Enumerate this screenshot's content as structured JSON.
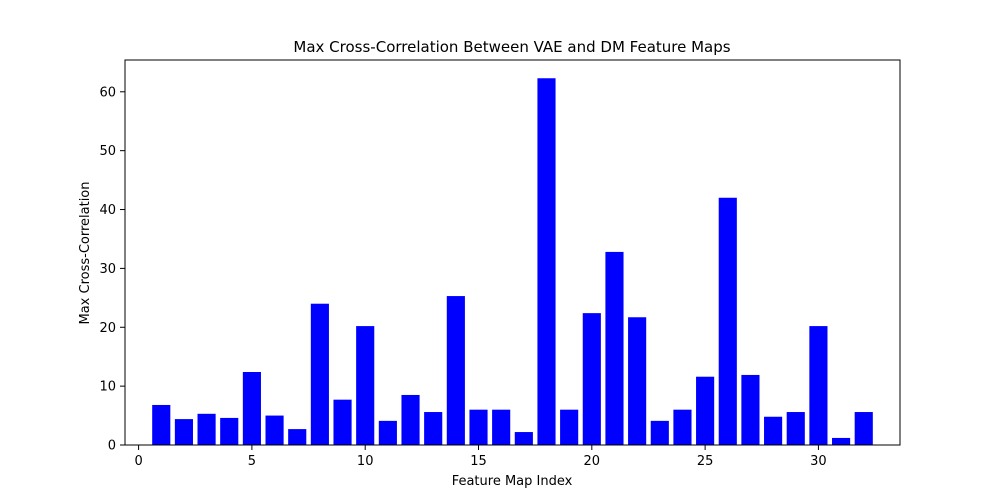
{
  "chart_data": {
    "type": "bar",
    "title": "Max Cross-Correlation Between VAE and DM Feature Maps",
    "xlabel": "Feature Map Index",
    "ylabel": "Max Cross-Correlation",
    "x": [
      1,
      2,
      3,
      4,
      5,
      6,
      7,
      8,
      9,
      10,
      11,
      12,
      13,
      14,
      15,
      16,
      17,
      18,
      19,
      20,
      21,
      22,
      23,
      24,
      25,
      26,
      27,
      28,
      29,
      30,
      31,
      32
    ],
    "values": [
      6.8,
      4.4,
      5.3,
      4.6,
      12.4,
      5.0,
      2.7,
      24.0,
      7.7,
      20.2,
      4.1,
      8.5,
      5.6,
      25.3,
      6.0,
      6.0,
      2.2,
      62.3,
      6.0,
      22.4,
      32.8,
      21.7,
      4.1,
      6.0,
      11.6,
      42.0,
      11.9,
      4.8,
      5.6,
      20.2,
      1.2,
      5.6
    ],
    "xlim": [
      -0.6,
      33.6
    ],
    "ylim": [
      0,
      65.4
    ],
    "xticks": [
      0,
      5,
      10,
      15,
      20,
      25,
      30
    ],
    "yticks": [
      0,
      10,
      20,
      30,
      40,
      50,
      60
    ],
    "bar_color": "#0000ff",
    "grid": false,
    "legend": "none"
  }
}
